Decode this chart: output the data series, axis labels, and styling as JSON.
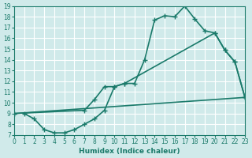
{
  "bg_color": "#d0eaea",
  "grid_color": "#ffffff",
  "line_color": "#1a7a6a",
  "line1_x": [
    1,
    2,
    3,
    4,
    5,
    6,
    7,
    8,
    9,
    10,
    11,
    12,
    13,
    14,
    15,
    16,
    17,
    18,
    19,
    20,
    21,
    22,
    23
  ],
  "line1_y": [
    9.0,
    8.5,
    7.5,
    7.2,
    7.2,
    7.5,
    8.0,
    8.5,
    9.3,
    11.5,
    11.8,
    11.8,
    14.0,
    17.7,
    18.1,
    18.0,
    19.0,
    17.8,
    16.7,
    16.5,
    14.9,
    13.8,
    10.5
  ],
  "line2_x": [
    0,
    7,
    8,
    9,
    10,
    11,
    20,
    21,
    22,
    23
  ],
  "line2_y": [
    9.0,
    9.3,
    10.3,
    11.5,
    11.5,
    11.8,
    16.5,
    14.9,
    13.8,
    10.5
  ],
  "line3_x": [
    0,
    23
  ],
  "line3_y": [
    9.0,
    10.5
  ],
  "xlim": [
    0,
    23
  ],
  "ylim": [
    7,
    19
  ],
  "xticks": [
    0,
    1,
    2,
    3,
    4,
    5,
    6,
    7,
    8,
    9,
    10,
    11,
    12,
    13,
    14,
    15,
    16,
    17,
    18,
    19,
    20,
    21,
    22,
    23
  ],
  "yticks": [
    7,
    8,
    9,
    10,
    11,
    12,
    13,
    14,
    15,
    16,
    17,
    18,
    19
  ],
  "xlabel": "Humidex (Indice chaleur)",
  "marker": "+",
  "markersize": 5,
  "linewidth": 1.2
}
